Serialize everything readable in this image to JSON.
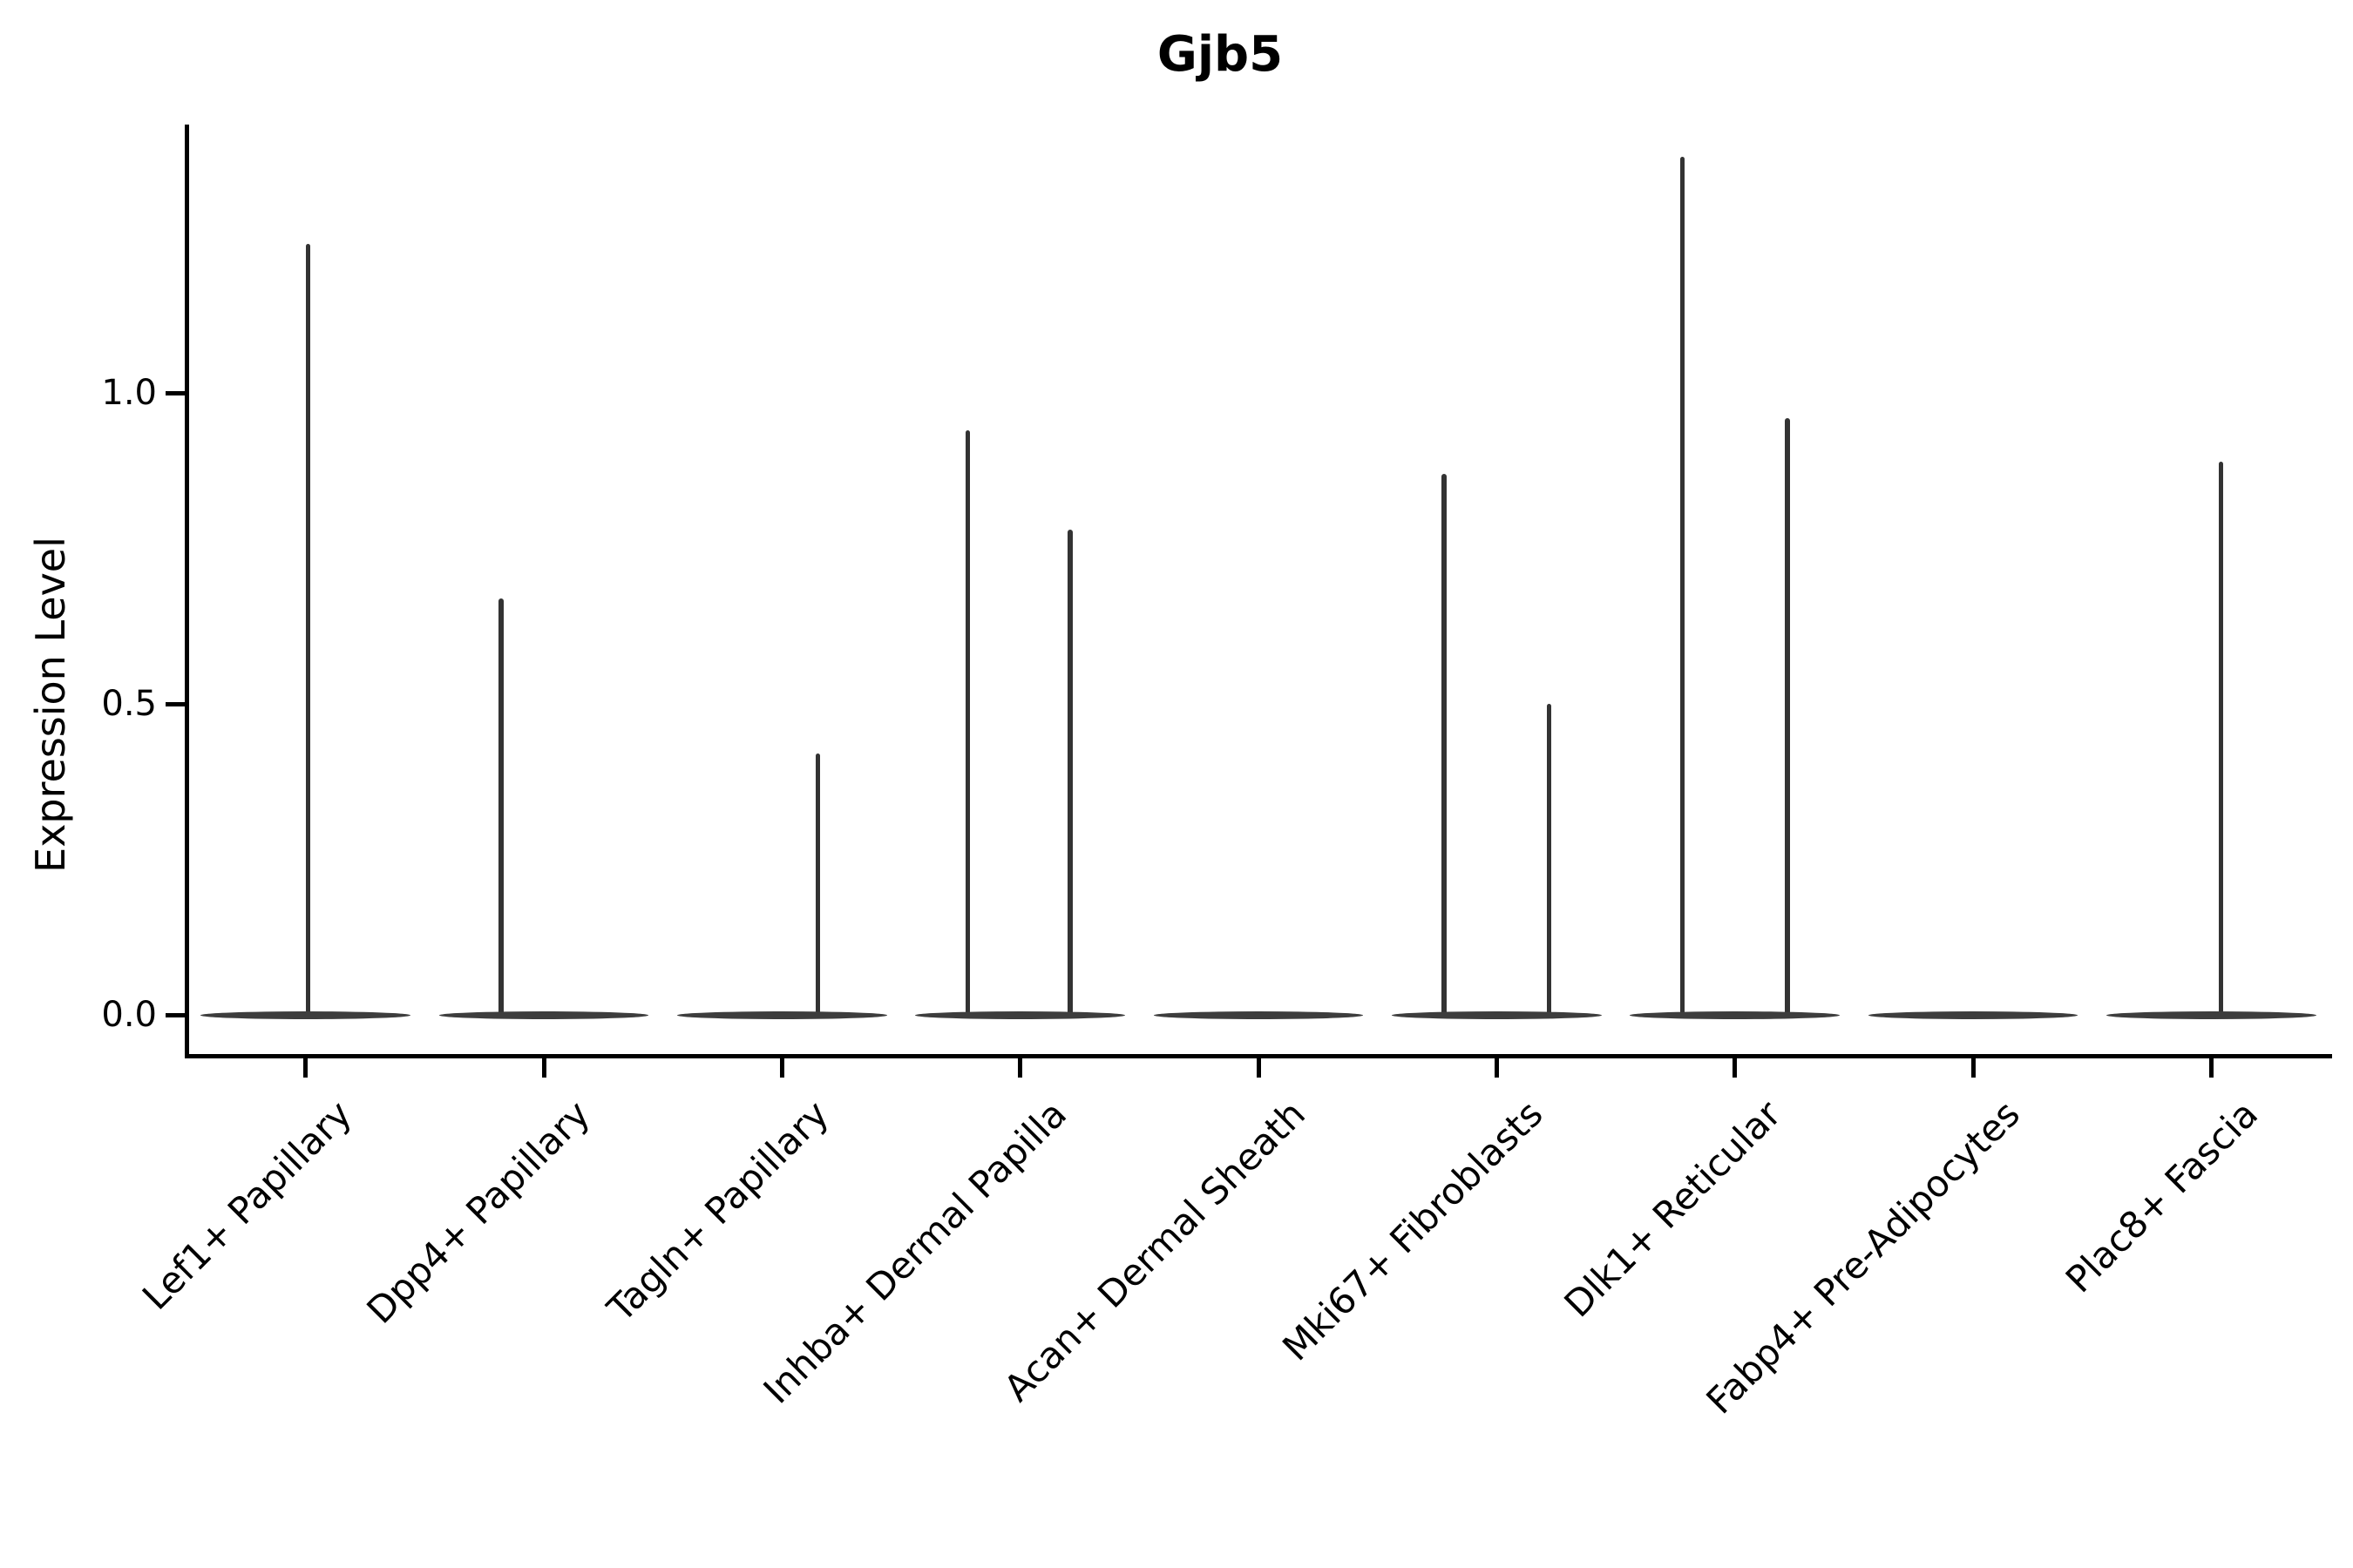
{
  "title": "Gjb5",
  "y_axis": {
    "label": "Expression Level",
    "tick_labels": [
      "0.0",
      "0.5",
      "1.0"
    ]
  },
  "x_axis": {
    "labels": [
      "Lef1+ Papillary",
      "Dpp4+ Papillary",
      "Tagln+ Papillary",
      "Inhba+ Dermal Papilla",
      "Acan+ Dermal Sheath",
      "Mki67+ Fibroblasts",
      "Dlk1+ Reticular",
      "Fabp4+ Pre-Adipocytes",
      "Plac8+ Fascia"
    ]
  },
  "chart_data": {
    "type": "violin",
    "title": "Gjb5",
    "xlabel": "",
    "ylabel": "Expression Level",
    "ylim": [
      -0.06,
      1.43
    ],
    "y_ticks": [
      0.0,
      0.5,
      1.0
    ],
    "grid": false,
    "legend": "none",
    "categories": [
      "Lef1+ Papillary",
      "Dpp4+ Papillary",
      "Tagln+ Papillary",
      "Inhba+ Dermal Papilla",
      "Acan+ Dermal Sheath",
      "Mki67+ Fibroblasts",
      "Dlk1+ Reticular",
      "Fabp4+ Pre-Adipocytes",
      "Plac8+ Fascia"
    ],
    "violins": [
      {
        "category": "Lef1+ Papillary",
        "zero_bulk_at_0": true,
        "base_width_frac": 0.88,
        "expressing_values": [
          {
            "x_offset_frac": 0.01,
            "value": 1.24
          }
        ]
      },
      {
        "category": "Dpp4+ Papillary",
        "zero_bulk_at_0": true,
        "base_width_frac": 0.88,
        "expressing_values": [
          {
            "x_offset_frac": -0.18,
            "value": 0.67
          }
        ]
      },
      {
        "category": "Tagln+ Papillary",
        "zero_bulk_at_0": true,
        "base_width_frac": 0.88,
        "expressing_values": [
          {
            "x_offset_frac": 0.15,
            "value": 0.42
          }
        ]
      },
      {
        "category": "Inhba+ Dermal Papilla",
        "zero_bulk_at_0": true,
        "base_width_frac": 0.88,
        "expressing_values": [
          {
            "x_offset_frac": -0.22,
            "value": 0.94
          },
          {
            "x_offset_frac": 0.21,
            "value": 0.78
          }
        ]
      },
      {
        "category": "Acan+ Dermal Sheath",
        "zero_bulk_at_0": true,
        "base_width_frac": 0.88,
        "expressing_values": []
      },
      {
        "category": "Mki67+ Fibroblasts",
        "zero_bulk_at_0": true,
        "base_width_frac": 0.88,
        "expressing_values": [
          {
            "x_offset_frac": -0.22,
            "value": 0.87
          },
          {
            "x_offset_frac": 0.22,
            "value": 0.5
          }
        ]
      },
      {
        "category": "Dlk1+ Reticular",
        "zero_bulk_at_0": true,
        "base_width_frac": 0.88,
        "expressing_values": [
          {
            "x_offset_frac": -0.22,
            "value": 1.38
          },
          {
            "x_offset_frac": 0.22,
            "value": 0.96
          }
        ]
      },
      {
        "category": "Fabp4+ Pre-Adipocytes",
        "zero_bulk_at_0": true,
        "base_width_frac": 0.88,
        "expressing_values": []
      },
      {
        "category": "Plac8+ Fascia",
        "zero_bulk_at_0": true,
        "base_width_frac": 0.88,
        "expressing_values": [
          {
            "x_offset_frac": 0.04,
            "value": 0.89
          }
        ]
      }
    ],
    "colors": {
      "violin_line": "#333333",
      "violin_base": "#3d3d3d",
      "axis": "#000000",
      "text": "#000000",
      "background": "#ffffff"
    }
  }
}
